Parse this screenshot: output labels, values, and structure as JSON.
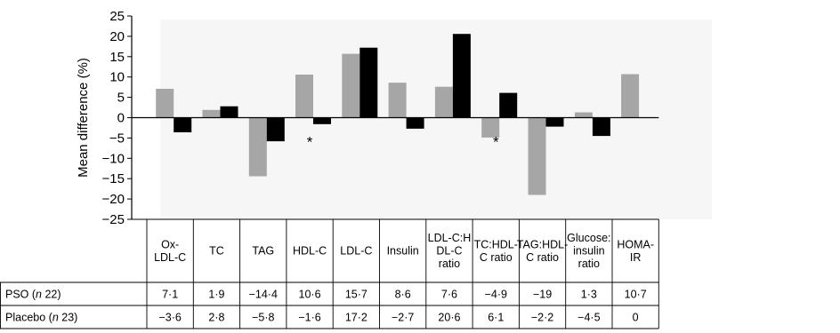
{
  "chart_data": {
    "type": "bar",
    "ylabel": "Mean difference (%)",
    "ylim": [
      -25,
      25
    ],
    "yticks": [
      25,
      20,
      15,
      10,
      5,
      0,
      -5,
      -10,
      -15,
      -20,
      -25
    ],
    "ytick_labels": [
      "25",
      "20",
      "15",
      "10",
      "5",
      "0",
      "−5",
      "−10",
      "−15",
      "−20",
      "−25"
    ],
    "categories": [
      [
        "Ox-",
        "LDL-C"
      ],
      [
        "TC"
      ],
      [
        "TAG"
      ],
      [
        "HDL-C"
      ],
      [
        "LDL-C"
      ],
      [
        "Insulin"
      ],
      [
        "LDL-C:H",
        "DL-C",
        "ratio"
      ],
      [
        "TC:HDL-",
        "C ratio"
      ],
      [
        "TAG:HDL-",
        "C ratio"
      ],
      [
        "Glucose:",
        "insulin",
        "ratio"
      ],
      [
        "HOMA-",
        "IR"
      ]
    ],
    "series": [
      {
        "name": "PSO",
        "n_label": "n 22",
        "color": "#a6a6a6",
        "values": [
          7.1,
          1.9,
          -14.4,
          10.6,
          15.7,
          8.6,
          7.6,
          -4.9,
          -19,
          1.3,
          10.7
        ],
        "labels": [
          "7·1",
          "1·9",
          "−14·4",
          "10·6",
          "15·7",
          "8·6",
          "7·6",
          "−4·9",
          "−19",
          "1·3",
          "10·7"
        ]
      },
      {
        "name": "Placebo",
        "n_label": "n 23",
        "color": "#000000",
        "values": [
          -3.6,
          2.8,
          -5.8,
          -1.6,
          17.2,
          -2.7,
          20.6,
          6.1,
          -2.2,
          -4.5,
          0
        ],
        "labels": [
          "−3·6",
          "2·8",
          "−5·8",
          "−1·6",
          "17·2",
          "−2·7",
          "20·6",
          "6·1",
          "−2·2",
          "−4·5",
          "0"
        ]
      }
    ],
    "annotations": [
      {
        "category_index": 3,
        "text": "*"
      },
      {
        "category_index": 7,
        "text": "*"
      }
    ]
  }
}
